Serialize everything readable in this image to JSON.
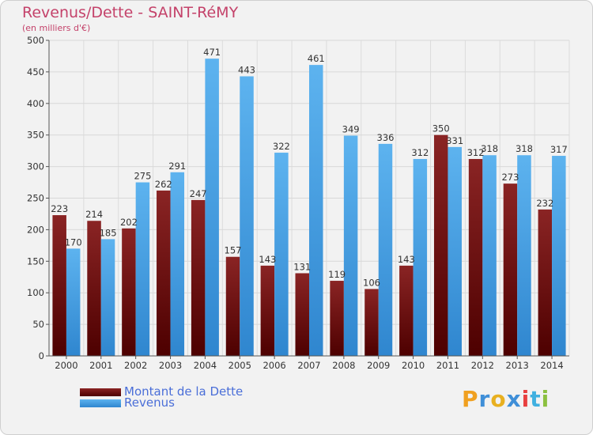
{
  "chart_data": {
    "type": "bar",
    "title": "Revenus/Dette - SAINT-RéMY",
    "subtitle": "(en milliers d'€)",
    "categories": [
      "2000",
      "2001",
      "2002",
      "2003",
      "2004",
      "2005",
      "2006",
      "2007",
      "2008",
      "2009",
      "2010",
      "2011",
      "2012",
      "2013",
      "2014"
    ],
    "series": [
      {
        "name": "Montant de la Dette",
        "color": "#7a1616",
        "values": [
          223,
          214,
          202,
          262,
          247,
          157,
          143,
          131,
          119,
          106,
          143,
          350,
          312,
          273,
          232
        ]
      },
      {
        "name": "Revenus",
        "color": "#4aa3e6",
        "values": [
          170,
          185,
          275,
          291,
          471,
          443,
          322,
          461,
          349,
          336,
          312,
          331,
          318,
          318,
          317
        ]
      }
    ],
    "yticks": [
      0,
      50,
      100,
      150,
      200,
      250,
      300,
      350,
      400,
      450,
      500
    ],
    "ylim": [
      0,
      500
    ],
    "xlabel": "",
    "ylabel": "",
    "grid": true,
    "legend_position": "bottom-left"
  },
  "logo": {
    "letters": [
      "P",
      "r",
      "o",
      "x",
      "i",
      "t",
      "i"
    ],
    "colors": [
      "#f0a020",
      "#3f8fd8",
      "#e8b020",
      "#3f8fd8",
      "#e84040",
      "#40b0e0",
      "#8cc040"
    ]
  }
}
